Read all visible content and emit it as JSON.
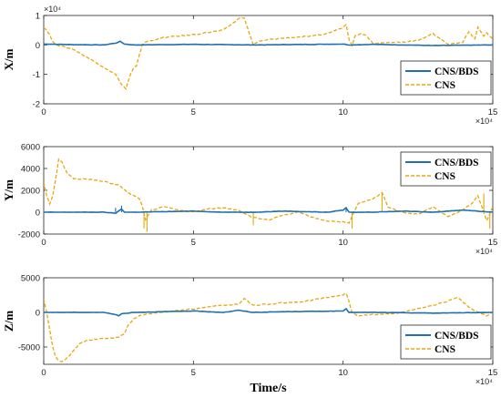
{
  "chart_data": [
    {
      "type": "line",
      "ylabel": "X/m",
      "xlabel": "",
      "x_exponent": "×10⁴",
      "y_exponent": "×10⁴",
      "xlim": [
        0,
        150000
      ],
      "ylim": [
        -20000,
        10000
      ],
      "xticks": [
        0,
        50000,
        100000,
        150000
      ],
      "xtick_labels": [
        "0",
        "5",
        "10",
        "15"
      ],
      "yticks": [
        -20000,
        -10000,
        0,
        10000
      ],
      "ytick_labels": [
        "-2",
        "-1",
        "0",
        "1"
      ],
      "legend_position": "right-lower",
      "series": [
        {
          "name": "CNS/BDS",
          "color": "#1f6fb2",
          "style": "solid",
          "x": [
            0,
            10000,
            20000,
            24000,
            25500,
            27000,
            30000,
            50000,
            70000,
            100000,
            102000,
            110000,
            130000,
            150000
          ],
          "y": [
            300,
            100,
            0,
            600,
            1200,
            300,
            0,
            200,
            0,
            300,
            0,
            200,
            -200,
            0
          ]
        },
        {
          "name": "CNS",
          "color": "#e8a70e",
          "style": "dashed",
          "x": [
            0,
            1000,
            2000,
            3000,
            5000,
            10000,
            15000,
            20000,
            24000,
            26000,
            27500,
            28000,
            29000,
            30000,
            31000,
            32000,
            33000,
            34000,
            40000,
            50000,
            60000,
            64000,
            66000,
            67000,
            68000,
            69000,
            70000,
            72000,
            75000,
            80000,
            90000,
            95000,
            100000,
            101000,
            102000,
            103000,
            104000,
            106000,
            108000,
            110000,
            112000,
            115000,
            120000,
            125000,
            128000,
            130000,
            132000,
            135000,
            140000,
            142000,
            144000,
            145000,
            147000,
            148000,
            150000
          ],
          "y": [
            6000,
            5000,
            3500,
            1000,
            -200,
            -1500,
            -4500,
            -7500,
            -10000,
            -13500,
            -15000,
            -13000,
            -10000,
            -8000,
            -7000,
            -3000,
            0,
            1000,
            2500,
            3500,
            5000,
            8000,
            9500,
            9000,
            6000,
            3000,
            0,
            1200,
            1800,
            2300,
            3000,
            4000,
            6000,
            7000,
            2000,
            0,
            3000,
            4000,
            3000,
            500,
            800,
            700,
            1000,
            1500,
            3000,
            3800,
            2500,
            200,
            1000,
            4500,
            2000,
            6000,
            3000,
            4000,
            2000
          ]
        }
      ]
    },
    {
      "type": "line",
      "ylabel": "Y/m",
      "xlabel": "",
      "x_exponent": "×10⁴",
      "xlim": [
        0,
        150000
      ],
      "ylim": [
        -2000,
        6000
      ],
      "xticks": [
        0,
        50000,
        100000,
        150000
      ],
      "xtick_labels": [
        "0",
        "5",
        "10",
        "15"
      ],
      "yticks": [
        -2000,
        0,
        2000,
        4000,
        6000
      ],
      "ytick_labels": [
        "-2000",
        "0",
        "2000",
        "4000",
        "6000"
      ],
      "legend_position": "top-right",
      "series": [
        {
          "name": "CNS/BDS",
          "color": "#1f6fb2",
          "style": "solid",
          "x": [
            0,
            10000,
            20000,
            24000,
            25000,
            26000,
            27000,
            30000,
            50000,
            60000,
            70000,
            80000,
            95000,
            100000,
            101000,
            102000,
            110000,
            120000,
            130000,
            140000,
            150000
          ],
          "y": [
            0,
            0,
            0,
            -100,
            100,
            300,
            0,
            0,
            100,
            0,
            0,
            100,
            0,
            200,
            400,
            0,
            0,
            100,
            0,
            200,
            0
          ],
          "spikes": [
            [
              24000,
              400
            ],
            [
              26000,
              600
            ],
            [
              101000,
              400
            ]
          ]
        },
        {
          "name": "CNS",
          "color": "#e8a70e",
          "style": "dashed",
          "x": [
            0,
            1000,
            2000,
            3000,
            4000,
            5000,
            6000,
            7000,
            8000,
            10000,
            15000,
            20000,
            25000,
            28000,
            30000,
            32000,
            33000,
            34000,
            36000,
            40000,
            45000,
            50000,
            55000,
            60000,
            65000,
            70000,
            75000,
            80000,
            85000,
            90000,
            95000,
            100000,
            102000,
            105000,
            110000,
            113000,
            115000,
            118000,
            120000,
            125000,
            130000,
            135000,
            140000,
            143000,
            145000,
            148000,
            150000
          ],
          "y": [
            2800,
            1500,
            800,
            1500,
            3000,
            4800,
            4600,
            4000,
            3500,
            3100,
            3000,
            2800,
            2500,
            1800,
            1500,
            1200,
            500,
            -700,
            200,
            500,
            200,
            0,
            300,
            400,
            200,
            -500,
            -700,
            -300,
            0,
            -500,
            -800,
            -900,
            -1000,
            800,
            1200,
            1800,
            500,
            200,
            0,
            -200,
            500,
            -400,
            200,
            800,
            1500,
            -800,
            500
          ],
          "spikes": [
            [
              33500,
              -1500
            ],
            [
              34500,
              -1800
            ],
            [
              70000,
              -1200
            ],
            [
              103000,
              -1500
            ],
            [
              113000,
              1800
            ],
            [
              147000,
              1700
            ],
            [
              149000,
              -1500
            ]
          ]
        }
      ]
    },
    {
      "type": "line",
      "ylabel": "Z/m",
      "xlabel": "Time/s",
      "x_exponent": "×10⁴",
      "xlim": [
        0,
        150000
      ],
      "ylim": [
        -7500,
        5000
      ],
      "xticks": [
        0,
        50000,
        100000,
        150000
      ],
      "xtick_labels": [
        "0",
        "5",
        "10",
        "15"
      ],
      "yticks": [
        -5000,
        0,
        5000
      ],
      "ytick_labels": [
        "-5000",
        "0",
        "5000"
      ],
      "legend_position": "bottom-right",
      "series": [
        {
          "name": "CNS/BDS",
          "color": "#1f6fb2",
          "style": "solid",
          "x": [
            0,
            10000,
            20000,
            24000,
            25000,
            26000,
            28000,
            30000,
            50000,
            60000,
            65000,
            70000,
            80000,
            100000,
            101000,
            102000,
            110000,
            130000,
            150000
          ],
          "y": [
            0,
            0,
            0,
            -300,
            -500,
            -200,
            -100,
            0,
            200,
            0,
            300,
            0,
            100,
            200,
            500,
            0,
            0,
            -100,
            0
          ]
        },
        {
          "name": "CNS",
          "color": "#e8a70e",
          "style": "dashed",
          "x": [
            0,
            1000,
            2000,
            3000,
            4000,
            6000,
            8000,
            10000,
            12000,
            15000,
            20000,
            25000,
            27000,
            28000,
            30000,
            32000,
            35000,
            40000,
            50000,
            55000,
            60000,
            65000,
            67000,
            70000,
            75000,
            80000,
            85000,
            90000,
            95000,
            100000,
            101000,
            102000,
            103000,
            105000,
            110000,
            115000,
            120000,
            125000,
            130000,
            135000,
            138000,
            140000,
            142000,
            145000,
            148000,
            150000
          ],
          "y": [
            2000,
            0,
            -2500,
            -5000,
            -6500,
            -7200,
            -6500,
            -5500,
            -4500,
            -4000,
            -3800,
            -3600,
            -3000,
            -2000,
            -1000,
            -500,
            -200,
            0,
            500,
            800,
            1000,
            1200,
            2000,
            1000,
            1200,
            1400,
            1500,
            1800,
            2200,
            2500,
            2800,
            1500,
            0,
            -500,
            -300,
            -200,
            0,
            500,
            1000,
            1600,
            2200,
            1500,
            800,
            0,
            -500,
            0
          ]
        }
      ]
    }
  ]
}
